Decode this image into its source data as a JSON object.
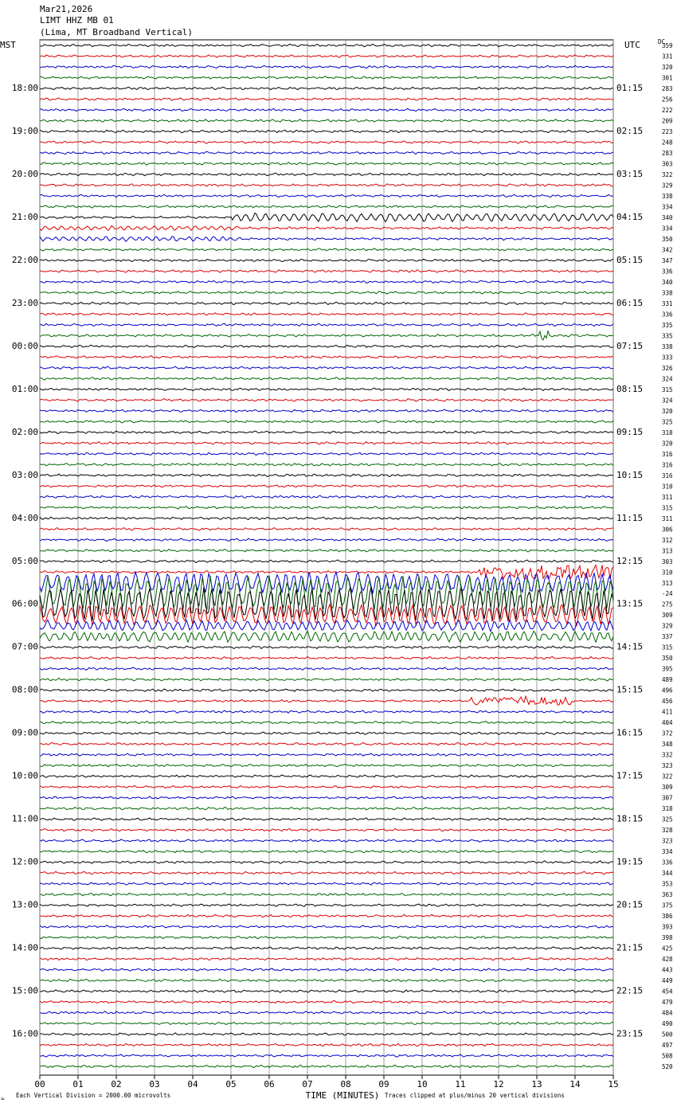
{
  "chart_data": {
    "type": "helicorder",
    "title_lines": [
      "Mar21,2026",
      "LIMT HHZ MB 01",
      "(Lima, MT Broadband Vertical)"
    ],
    "left_axis_label": "MST",
    "right_axis_label": "UTC",
    "dc_label": "DC",
    "xlabel": "TIME (MINUTES)",
    "footer_left": "Each Vertical Division = 2000.00 microvolts",
    "footer_right": "Traces clipped at plus/minus 20 vertical divisions",
    "xlim": [
      0,
      15
    ],
    "xticks": [
      {
        "value": 0,
        "label": "00"
      },
      {
        "value": 1,
        "label": "01"
      },
      {
        "value": 2,
        "label": "02"
      },
      {
        "value": 3,
        "label": "03"
      },
      {
        "value": 4,
        "label": "04"
      },
      {
        "value": 5,
        "label": "05"
      },
      {
        "value": 6,
        "label": "06"
      },
      {
        "value": 7,
        "label": "07"
      },
      {
        "value": 8,
        "label": "08"
      },
      {
        "value": 9,
        "label": "09"
      },
      {
        "value": 10,
        "label": "10"
      },
      {
        "value": 11,
        "label": "11"
      },
      {
        "value": 12,
        "label": "12"
      },
      {
        "value": 13,
        "label": "13"
      },
      {
        "value": 14,
        "label": "14"
      },
      {
        "value": 15,
        "label": "15"
      }
    ],
    "trace_colors": [
      "#000000",
      "#dd0000",
      "#0000cc",
      "#006600"
    ],
    "row_labels_mst": [
      null,
      null,
      null,
      null,
      "18:00",
      null,
      null,
      null,
      "19:00",
      null,
      null,
      null,
      "20:00",
      null,
      null,
      null,
      "21:00",
      null,
      null,
      null,
      "22:00",
      null,
      null,
      null,
      "23:00",
      null,
      null,
      null,
      "00:00",
      null,
      null,
      null,
      "01:00",
      null,
      null,
      null,
      "02:00",
      null,
      null,
      null,
      "03:00",
      null,
      null,
      null,
      "04:00",
      null,
      null,
      null,
      "05:00",
      null,
      null,
      null,
      "06:00",
      null,
      null,
      null,
      "07:00",
      null,
      null,
      null,
      "08:00",
      null,
      null,
      null,
      "09:00",
      null,
      null,
      null,
      "10:00",
      null,
      null,
      null,
      "11:00",
      null,
      null,
      null,
      "12:00",
      null,
      null,
      null,
      "13:00",
      null,
      null,
      null,
      "14:00",
      null,
      null,
      null,
      "15:00",
      null,
      null,
      null,
      "16:00",
      null,
      null,
      null
    ],
    "row_labels_utc": [
      null,
      null,
      null,
      null,
      "01:15",
      null,
      null,
      null,
      "02:15",
      null,
      null,
      null,
      "03:15",
      null,
      null,
      null,
      "04:15",
      null,
      null,
      null,
      "05:15",
      null,
      null,
      null,
      "06:15",
      null,
      null,
      null,
      "07:15",
      null,
      null,
      null,
      "08:15",
      null,
      null,
      null,
      "09:15",
      null,
      null,
      null,
      "10:15",
      null,
      null,
      null,
      "11:15",
      null,
      null,
      null,
      "12:15",
      null,
      null,
      null,
      "13:15",
      null,
      null,
      null,
      "14:15",
      null,
      null,
      null,
      "15:15",
      null,
      null,
      null,
      "16:15",
      null,
      null,
      null,
      "17:15",
      null,
      null,
      null,
      "18:15",
      null,
      null,
      null,
      "19:15",
      null,
      null,
      null,
      "20:15",
      null,
      null,
      null,
      "21:15",
      null,
      null,
      null,
      "22:15",
      null,
      null,
      null,
      "23:15",
      null,
      null,
      null
    ],
    "dc_values": [
      359,
      331,
      320,
      301,
      283,
      256,
      222,
      209,
      223,
      248,
      283,
      303,
      322,
      329,
      338,
      334,
      340,
      334,
      350,
      342,
      347,
      336,
      340,
      338,
      331,
      336,
      335,
      335,
      338,
      333,
      326,
      324,
      315,
      324,
      320,
      325,
      318,
      320,
      316,
      316,
      316,
      310,
      311,
      315,
      311,
      306,
      312,
      313,
      303,
      310,
      313,
      -24,
      275,
      309,
      329,
      337,
      315,
      350,
      395,
      489,
      496,
      456,
      411,
      404,
      372,
      348,
      332,
      323,
      322,
      309,
      307,
      318,
      325,
      328,
      323,
      334,
      336,
      344,
      353,
      363,
      375,
      386,
      393,
      398,
      425,
      428,
      443,
      449,
      454,
      479,
      484,
      490,
      500,
      497,
      508,
      520
    ]
  }
}
